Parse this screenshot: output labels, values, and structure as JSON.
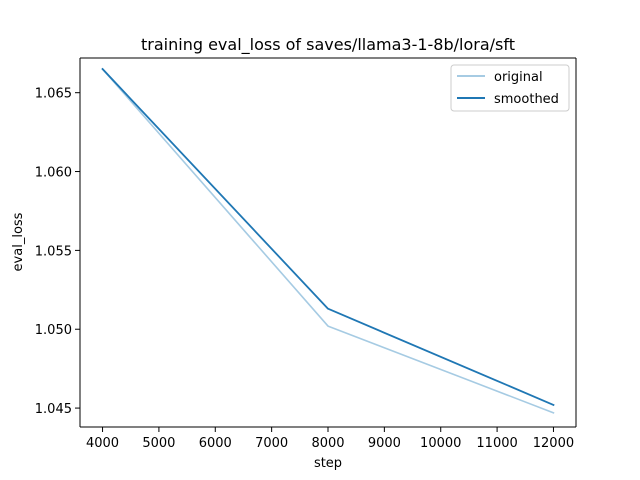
{
  "chart_data": {
    "type": "line",
    "title": "training eval_loss of saves/llama3-1-8b/lora/sft",
    "xlabel": "step",
    "ylabel": "eval_loss",
    "xlim": [
      3600,
      12400
    ],
    "ylim": [
      1.0438,
      1.0672
    ],
    "xticks": [
      4000,
      5000,
      6000,
      7000,
      8000,
      9000,
      10000,
      11000,
      12000
    ],
    "yticks": [
      1.045,
      1.05,
      1.055,
      1.06,
      1.065
    ],
    "ytick_labels": [
      "1.045",
      "1.050",
      "1.055",
      "1.060",
      "1.065"
    ],
    "grid": false,
    "legend_position": "top-right",
    "series": [
      {
        "name": "original",
        "color": "#a6cbe3",
        "x": [
          4000,
          8000,
          12000
        ],
        "y": [
          1.0665,
          1.0502,
          1.0447
        ]
      },
      {
        "name": "smoothed",
        "color": "#1f77b4",
        "x": [
          4000,
          8000,
          12000
        ],
        "y": [
          1.0665,
          1.0513,
          1.0452
        ]
      }
    ]
  }
}
